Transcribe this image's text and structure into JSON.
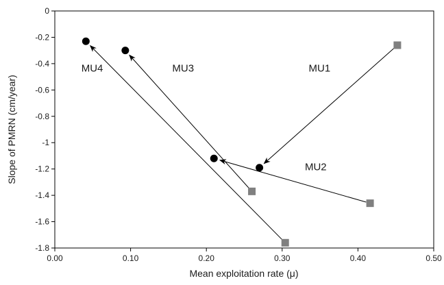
{
  "chart_data": {
    "type": "scatter",
    "title": "",
    "xlabel": "Mean exploitation rate (μ)",
    "ylabel": "Slope of PMRN (cm/year)",
    "xlim": [
      0.0,
      0.5
    ],
    "ylim": [
      -1.8,
      0
    ],
    "x_ticks": [
      0.0,
      0.1,
      0.2,
      0.3,
      0.4,
      0.5
    ],
    "x_tick_labels": [
      "0.00",
      "0.10",
      "0.20",
      "0.30",
      "0.40",
      "0.50"
    ],
    "y_ticks": [
      0,
      -0.2,
      -0.4,
      -0.6,
      -0.8,
      -1,
      -1.2,
      -1.4,
      -1.6,
      -1.8
    ],
    "y_tick_labels": [
      "0",
      "-0.2",
      "-0.4",
      "-0.6",
      "-0.8",
      "-1",
      "-1.2",
      "-1.4",
      "-1.6",
      "-1.8"
    ],
    "grid": false,
    "legend": "none",
    "marker_colors": {
      "start": "#808080",
      "end": "#000000",
      "arrow": "#000000"
    },
    "series": [
      {
        "name": "MU1",
        "start": {
          "x": 0.452,
          "y": -0.26
        },
        "end": {
          "x": 0.27,
          "y": -1.19
        }
      },
      {
        "name": "MU2",
        "start": {
          "x": 0.416,
          "y": -1.46
        },
        "end": {
          "x": 0.21,
          "y": -1.12
        }
      },
      {
        "name": "MU3",
        "start": {
          "x": 0.26,
          "y": -1.37
        },
        "end": {
          "x": 0.093,
          "y": -0.3
        }
      },
      {
        "name": "MU4",
        "start": {
          "x": 0.304,
          "y": -1.76
        },
        "end": {
          "x": 0.041,
          "y": -0.23
        }
      }
    ],
    "annotations": [
      {
        "text": "MU1",
        "x": 0.335,
        "y": -0.46
      },
      {
        "text": "MU2",
        "x": 0.33,
        "y": -1.21
      },
      {
        "text": "MU3",
        "x": 0.155,
        "y": -0.46
      },
      {
        "text": "MU4",
        "x": 0.035,
        "y": -0.46
      }
    ]
  }
}
